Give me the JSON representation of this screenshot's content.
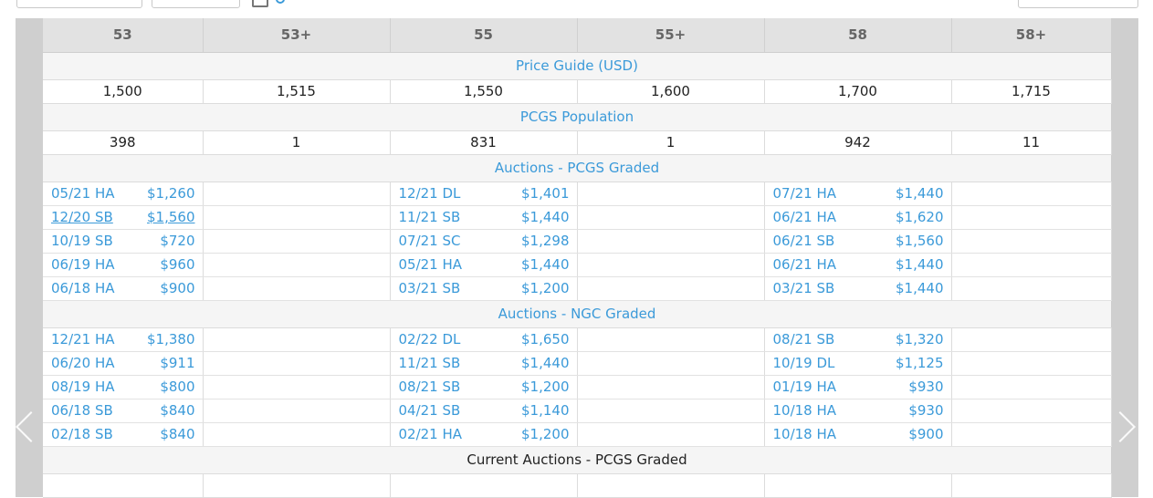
{
  "grades": [
    "53",
    "53+",
    "55",
    "55+",
    "58",
    "58+"
  ],
  "sections": {
    "price_guide": "Price Guide (USD)",
    "pcgs_population": "PCGS Population",
    "auctions_pcgs": "Auctions - PCGS Graded",
    "auctions_ngc": "Auctions - NGC Graded",
    "current_auctions": "Current Auctions - PCGS Graded"
  },
  "price_guide": [
    "1,500",
    "1,515",
    "1,550",
    "1,600",
    "1,700",
    "1,715"
  ],
  "population": [
    "398",
    "1",
    "831",
    "1",
    "942",
    "11"
  ],
  "auctions_pcgs": [
    [
      {
        "d": "05/21 HA",
        "p": "$1,260"
      },
      null,
      {
        "d": "12/21 DL",
        "p": "$1,401"
      },
      null,
      {
        "d": "07/21 HA",
        "p": "$1,440"
      },
      null
    ],
    [
      {
        "d": "12/20 SB",
        "p": "$1,560",
        "link": true
      },
      null,
      {
        "d": "11/21 SB",
        "p": "$1,440"
      },
      null,
      {
        "d": "06/21 HA",
        "p": "$1,620"
      },
      null
    ],
    [
      {
        "d": "10/19 SB",
        "p": "$720"
      },
      null,
      {
        "d": "07/21 SC",
        "p": "$1,298"
      },
      null,
      {
        "d": "06/21 SB",
        "p": "$1,560"
      },
      null
    ],
    [
      {
        "d": "06/19 HA",
        "p": "$960"
      },
      null,
      {
        "d": "05/21 HA",
        "p": "$1,440"
      },
      null,
      {
        "d": "06/21 HA",
        "p": "$1,440"
      },
      null
    ],
    [
      {
        "d": "06/18 HA",
        "p": "$900"
      },
      null,
      {
        "d": "03/21 SB",
        "p": "$1,200"
      },
      null,
      {
        "d": "03/21 SB",
        "p": "$1,440"
      },
      null
    ]
  ],
  "auctions_ngc": [
    [
      {
        "d": "12/21 HA",
        "p": "$1,380"
      },
      null,
      {
        "d": "02/22 DL",
        "p": "$1,650"
      },
      null,
      {
        "d": "08/21 SB",
        "p": "$1,320"
      },
      null
    ],
    [
      {
        "d": "06/20 HA",
        "p": "$911"
      },
      null,
      {
        "d": "11/21 SB",
        "p": "$1,440"
      },
      null,
      {
        "d": "10/19 DL",
        "p": "$1,125"
      },
      null
    ],
    [
      {
        "d": "08/19 HA",
        "p": "$800"
      },
      null,
      {
        "d": "08/21 SB",
        "p": "$1,200"
      },
      null,
      {
        "d": "01/19 HA",
        "p": "$930"
      },
      null
    ],
    [
      {
        "d": "06/18 SB",
        "p": "$840"
      },
      null,
      {
        "d": "04/21 SB",
        "p": "$1,140"
      },
      null,
      {
        "d": "10/18 HA",
        "p": "$930"
      },
      null
    ],
    [
      {
        "d": "02/18 SB",
        "p": "$840"
      },
      null,
      {
        "d": "02/21 HA",
        "p": "$1,200"
      },
      null,
      {
        "d": "10/18 HA",
        "p": "$900"
      },
      null
    ]
  ],
  "colors": {
    "link": "#3b9ad9",
    "header_bg": "#e2e2e2",
    "section_bg": "#f5f5f5",
    "gutter": "#cfcfcf"
  },
  "icons": {
    "prev": "chevron-left-icon",
    "next": "chevron-right-icon",
    "calendar": "calendar-icon"
  }
}
